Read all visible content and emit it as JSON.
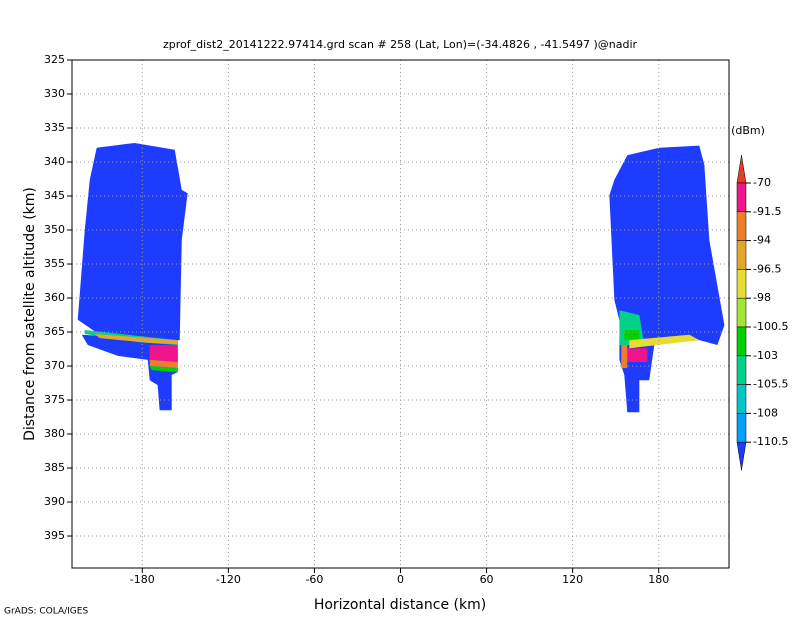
{
  "chart_data": {
    "type": "field",
    "title": "zprof_dist2_20141222.97414.grd  scan # 258  (Lat, Lon)=(-34.4826 , -41.5497 )@nadir",
    "x_label": "Horizontal distance (km)",
    "y_label": "Distance from satellite altitude (km)",
    "credit": "GrADS: COLA/IGES",
    "xlim": [
      -229,
      229
    ],
    "xticks": [
      -180,
      -120,
      -60,
      0,
      60,
      120,
      180
    ],
    "ylim": [
      399.7,
      325
    ],
    "yticks": [
      325,
      330,
      335,
      340,
      345,
      350,
      355,
      360,
      365,
      370,
      375,
      380,
      385,
      390,
      395
    ],
    "grid": true,
    "colorbar": {
      "label": "(dBm)",
      "levels": [
        -70,
        -91.5,
        -94,
        -96.5,
        -98,
        -100.5,
        -103,
        -105.5,
        -108,
        -110.5
      ],
      "colors": [
        "#e63c28",
        "#f0148c",
        "#f07d28",
        "#e6a52d",
        "#e6dc32",
        "#a0e632",
        "#00d200",
        "#00d28c",
        "#00c8c8",
        "#00a0ff",
        "#1e3cff"
      ]
    },
    "regions": [
      {
        "value": -112,
        "x": [
          -211.8,
          -185.3,
          -157.4,
          -152.5,
          -148.4,
          -152.5,
          -153.9,
          -174.8,
          -209.7,
          -225.0,
          -220.1,
          -216.6
        ],
        "y": [
          337.9,
          337.2,
          338.2,
          344.1,
          344.6,
          351.5,
          366.2,
          366.9,
          365.4,
          363.2,
          350.0,
          342.6
        ]
      },
      {
        "value": -112,
        "x": [
          -222.2,
          -155.3,
          -155.3,
          -159.5,
          -159.5,
          -167.9,
          -169.3,
          -174.8,
          -176.2,
          -197.1,
          -218.0
        ],
        "y": [
          365.4,
          366.2,
          370.9,
          371.3,
          376.5,
          376.5,
          372.8,
          372.1,
          369.1,
          368.5,
          366.9
        ]
      },
      {
        "value": -104,
        "x": [
          -220.1,
          -181.8,
          -155.3,
          -155.3,
          -181.8,
          -220.1
        ],
        "y": [
          364.7,
          365.6,
          366.2,
          366.9,
          366.5,
          365.3
        ]
      },
      {
        "value": -96,
        "x": [
          -213.2,
          -174.8,
          -155.3,
          -155.3,
          -174.8,
          -209.7
        ],
        "y": [
          365.3,
          365.9,
          366.2,
          366.8,
          366.6,
          365.9
        ]
      },
      {
        "value": -85,
        "x": [
          -174.8,
          -155.3,
          -155.3,
          -174.8
        ],
        "y": [
          366.9,
          366.9,
          369.4,
          369.1
        ]
      },
      {
        "value": -93,
        "x": [
          -174.8,
          -155.3,
          -155.3,
          -174.8
        ],
        "y": [
          369.1,
          369.4,
          370.3,
          370.0
        ]
      },
      {
        "value": -101,
        "x": [
          -174.8,
          -155.3,
          -155.3,
          -173.4
        ],
        "y": [
          370.0,
          370.3,
          370.9,
          370.6
        ]
      },
      {
        "value": -112,
        "x": [
          158.1,
          180.4,
          208.3,
          211.8,
          215.3,
          225.8,
          220.9,
          208.3,
          173.4,
          156.0,
          149.1,
          145.6,
          149.1
        ],
        "y": [
          339.0,
          337.9,
          337.6,
          340.4,
          351.5,
          364.0,
          366.9,
          366.2,
          366.9,
          366.2,
          360.3,
          344.9,
          342.6
        ]
      },
      {
        "value": -112,
        "x": [
          152.6,
          176.9,
          173.4,
          166.5,
          166.5,
          158.1,
          156.0,
          152.6
        ],
        "y": [
          366.2,
          366.9,
          372.1,
          372.1,
          376.8,
          376.8,
          371.3,
          369.1
        ]
      },
      {
        "value": -105,
        "x": [
          152.6,
          166.5,
          170.0,
          152.6
        ],
        "y": [
          361.8,
          362.5,
          366.9,
          366.9
        ]
      },
      {
        "value": -101,
        "x": [
          156.0,
          166.5,
          166.5,
          156.0
        ],
        "y": [
          364.7,
          364.7,
          366.2,
          366.2
        ]
      },
      {
        "value": -97,
        "x": [
          159.5,
          201.3,
          208.3,
          159.5
        ],
        "y": [
          366.2,
          365.4,
          366.2,
          367.4
        ]
      },
      {
        "value": -85,
        "x": [
          158.1,
          172.1,
          172.1,
          158.1
        ],
        "y": [
          367.4,
          367.4,
          369.4,
          369.4
        ]
      },
      {
        "value": -93,
        "x": [
          153.9,
          158.1,
          158.1,
          153.9
        ],
        "y": [
          366.9,
          366.9,
          370.3,
          370.3
        ]
      }
    ]
  }
}
